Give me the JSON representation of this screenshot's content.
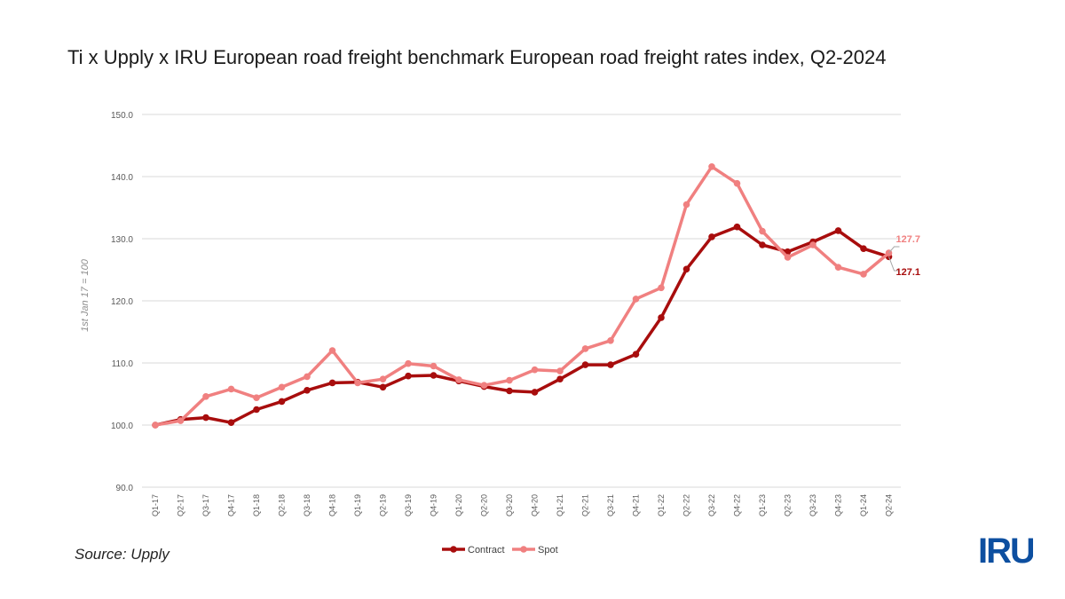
{
  "title": "Ti x Upply x IRU European road freight benchmark European road freight rates index, Q2-2024",
  "source": "Source: Upply",
  "logo_text": "IRU",
  "colors": {
    "contract": "#a80d0d",
    "spot": "#f08080",
    "grid": "#d9d9d9",
    "logo_dark": "#0d4fa0",
    "logo_light": "#2fa6e0"
  },
  "chart_data": {
    "type": "line",
    "title": "Ti x Upply x IRU European road freight benchmark European road freight rates index, Q2-2024",
    "xlabel": "",
    "ylabel": "1st Jan 17 = 100",
    "ylim": [
      90,
      150
    ],
    "yticks": [
      "90.0",
      "100.0",
      "110.0",
      "120.0",
      "130.0",
      "140.0",
      "150.0"
    ],
    "grid": true,
    "legend": "bottom",
    "categories": [
      "Q1-17",
      "Q2-17",
      "Q3-17",
      "Q4-17",
      "Q1-18",
      "Q2-18",
      "Q3-18",
      "Q4-18",
      "Q1-19",
      "Q2-19",
      "Q3-19",
      "Q4-19",
      "Q1-20",
      "Q2-20",
      "Q3-20",
      "Q4-20",
      "Q1-21",
      "Q2-21",
      "Q3-21",
      "Q4-21",
      "Q1-22",
      "Q2-22",
      "Q3-22",
      "Q4-22",
      "Q1-23",
      "Q2-23",
      "Q3-23",
      "Q4-23",
      "Q1-24",
      "Q2-24"
    ],
    "series": [
      {
        "name": "Contract",
        "color": "#a80d0d",
        "values": [
          100.0,
          100.9,
          101.2,
          100.4,
          102.5,
          103.8,
          105.6,
          106.8,
          106.9,
          106.1,
          107.9,
          108.0,
          107.1,
          106.2,
          105.5,
          105.3,
          107.4,
          109.7,
          109.7,
          111.4,
          117.3,
          125.1,
          130.3,
          131.9,
          129.0,
          127.9,
          129.5,
          131.3,
          128.4,
          127.1
        ]
      },
      {
        "name": "Spot",
        "color": "#f08080",
        "values": [
          100.0,
          100.7,
          104.6,
          105.8,
          104.4,
          106.1,
          107.8,
          112.0,
          106.8,
          107.4,
          109.9,
          109.5,
          107.3,
          106.4,
          107.2,
          108.9,
          108.7,
          112.3,
          113.6,
          120.3,
          122.1,
          135.5,
          141.6,
          138.9,
          131.2,
          127.0,
          129.0,
          125.4,
          124.3,
          127.7
        ]
      }
    ],
    "data_labels": [
      {
        "series": "Spot",
        "text": "127.7"
      },
      {
        "series": "Contract",
        "text": "127.1"
      }
    ]
  }
}
